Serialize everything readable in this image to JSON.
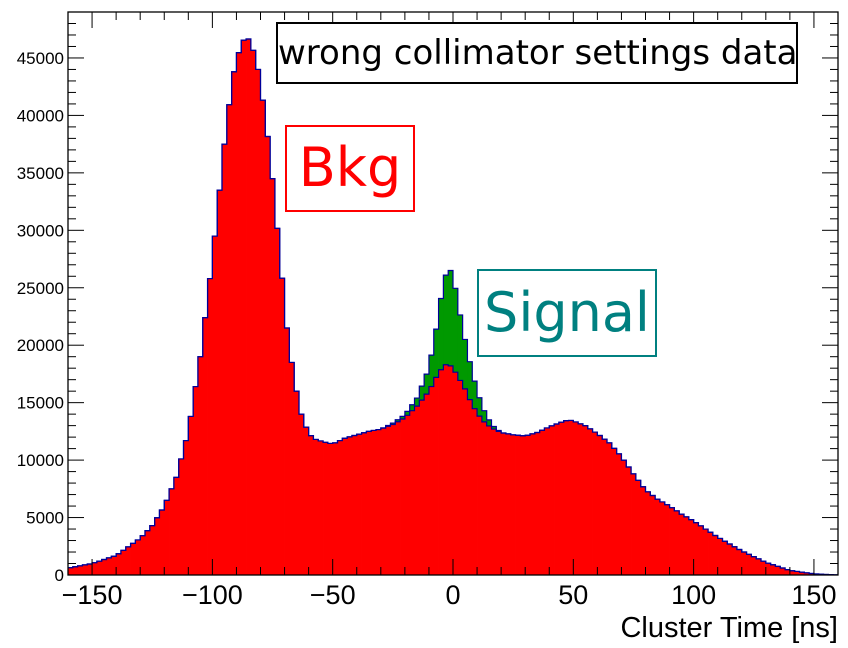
{
  "chart_data": {
    "type": "histogram",
    "title": "",
    "xlabel": "Cluster Time [ns]",
    "ylabel": "",
    "xlim": [
      -160,
      160
    ],
    "ylim": [
      0,
      49000
    ],
    "bin_width": 2,
    "x_ticks": [
      -150,
      -100,
      -50,
      0,
      50,
      100,
      150
    ],
    "x_tick_labels": [
      "−150",
      "−100",
      "−50",
      "0",
      "50",
      "100",
      "150"
    ],
    "y_ticks": [
      0,
      5000,
      10000,
      15000,
      20000,
      25000,
      30000,
      35000,
      40000,
      45000
    ],
    "y_tick_labels": [
      "0",
      "5000",
      "10000",
      "15000",
      "20000",
      "25000",
      "30000",
      "35000",
      "40000",
      "45000"
    ],
    "colors": {
      "background": "#ff0000",
      "signal": "#009900",
      "outline": "#000099",
      "frame": "#000000"
    },
    "series": [
      {
        "name": "Bkg",
        "style": "stacked-bottom",
        "x": [
          -160,
          -150,
          -140,
          -130,
          -125,
          -120,
          -115,
          -110,
          -105,
          -100,
          -97,
          -94,
          -91,
          -88,
          -86,
          -84,
          -81,
          -78,
          -75,
          -72,
          -69,
          -66,
          -63,
          -60,
          -57,
          -54,
          -50,
          -45,
          -40,
          -35,
          -30,
          -25,
          -20,
          -15,
          -10,
          -7,
          -4,
          -2,
          0,
          2,
          5,
          8,
          12,
          16,
          20,
          25,
          30,
          35,
          40,
          45,
          48,
          50,
          55,
          60,
          65,
          70,
          75,
          80,
          85,
          90,
          95,
          100,
          110,
          120,
          130,
          140,
          150,
          160
        ],
        "values": [
          600,
          1000,
          1700,
          3200,
          4300,
          6000,
          8500,
          12500,
          19000,
          27500,
          33500,
          39500,
          43800,
          46300,
          46800,
          46500,
          44000,
          40000,
          34500,
          28000,
          21500,
          17000,
          14000,
          12300,
          11800,
          11600,
          11400,
          11900,
          12200,
          12500,
          12700,
          13100,
          13700,
          14700,
          16000,
          17200,
          18200,
          18400,
          18000,
          17300,
          16200,
          14800,
          13500,
          12800,
          12400,
          12200,
          12100,
          12400,
          12900,
          13300,
          13500,
          13400,
          13000,
          12300,
          11500,
          10300,
          8800,
          7400,
          6600,
          6000,
          5300,
          4700,
          3300,
          2100,
          1100,
          400,
          100,
          0
        ]
      },
      {
        "name": "Signal",
        "style": "stacked-top",
        "x": [
          -30,
          -20,
          -15,
          -10,
          -7,
          -4,
          -2,
          0,
          2,
          5,
          8,
          12,
          16,
          20
        ],
        "values": [
          0,
          250,
          700,
          2000,
          4200,
          7200,
          8400,
          8200,
          6400,
          4300,
          2800,
          1200,
          300,
          0
        ]
      }
    ],
    "annotations": {
      "title_box": "wrong collimator settings data",
      "bkg_label": "Bkg",
      "signal_label": "Signal"
    }
  }
}
